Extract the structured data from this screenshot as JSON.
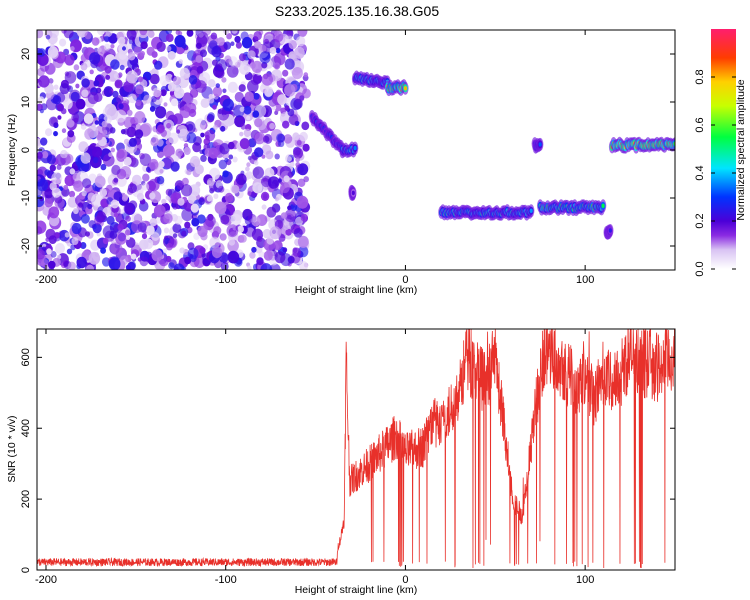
{
  "title": "S233.2025.135.16.38.G05",
  "chart_data": [
    {
      "type": "heatmap",
      "xlabel": "Height of straight line (km)",
      "ylabel": "Frequency (Hz)",
      "xlim": [
        -205,
        150
      ],
      "ylim": [
        -25,
        25
      ],
      "xticks": [
        -200,
        -100,
        0,
        100
      ],
      "yticks": [
        -20,
        -10,
        0,
        10,
        20
      ],
      "colorbar": {
        "label": "Normalized spectral amplitude",
        "ticks": [
          0.0,
          0.2,
          0.4,
          0.6,
          0.8
        ],
        "tick_labels": [
          "0.0",
          "0.2",
          "0.4",
          "0.6",
          "0.8"
        ],
        "range": [
          0,
          1
        ]
      },
      "features": [
        {
          "x": [
            -205,
            -55
          ],
          "freq": [
            -25,
            25
          ],
          "amplitude": 0.1,
          "kind": "noise"
        },
        {
          "x": [
            -52,
            -35
          ],
          "freq": [
            7,
            0
          ],
          "amplitude": 0.35
        },
        {
          "x": [
            -35,
            -28
          ],
          "freq": [
            0,
            0
          ],
          "amplitude": 0.45
        },
        {
          "x": [
            -30,
            -29
          ],
          "freq": [
            -9,
            -9
          ],
          "amplitude": 0.3
        },
        {
          "x": [
            -28,
            -10
          ],
          "freq": [
            15,
            14
          ],
          "amplitude": 0.45
        },
        {
          "x": [
            -10,
            0
          ],
          "freq": [
            13,
            13
          ],
          "amplitude": 0.8
        },
        {
          "x": [
            20,
            70
          ],
          "freq": [
            -13,
            -13
          ],
          "amplitude": 0.5
        },
        {
          "x": [
            72,
            75
          ],
          "freq": [
            1,
            1
          ],
          "amplitude": 0.4
        },
        {
          "x": [
            75,
            110
          ],
          "freq": [
            -12,
            -12
          ],
          "amplitude": 0.6
        },
        {
          "x": [
            112,
            114
          ],
          "freq": [
            -17,
            -17
          ],
          "amplitude": 0.35
        },
        {
          "x": [
            115,
            150
          ],
          "freq": [
            1,
            1
          ],
          "amplitude": 0.85
        }
      ]
    },
    {
      "type": "line",
      "xlabel": "Height of straight line (km)",
      "ylabel": "SNR (10 * v/v)",
      "xlim": [
        -205,
        150
      ],
      "ylim": [
        0,
        680
      ],
      "xticks": [
        -200,
        -100,
        0,
        100
      ],
      "yticks": [
        0,
        200,
        400,
        600
      ],
      "series": [
        {
          "color": "#e8302a",
          "profile": [
            [
              -205,
              25
            ],
            [
              -40,
              25
            ],
            [
              -36,
              90
            ],
            [
              -34,
              150
            ],
            [
              -33,
              600
            ],
            [
              -31,
              250
            ],
            [
              -20,
              300
            ],
            [
              -10,
              350
            ],
            [
              -5,
              380
            ],
            [
              0,
              330
            ],
            [
              10,
              350
            ],
            [
              15,
              420
            ],
            [
              20,
              400
            ],
            [
              25,
              450
            ],
            [
              30,
              520
            ],
            [
              35,
              600
            ],
            [
              40,
              560
            ],
            [
              45,
              520
            ],
            [
              50,
              600
            ],
            [
              55,
              400
            ],
            [
              60,
              200
            ],
            [
              65,
              150
            ],
            [
              70,
              350
            ],
            [
              75,
              560
            ],
            [
              80,
              630
            ],
            [
              85,
              600
            ],
            [
              90,
              560
            ],
            [
              95,
              520
            ],
            [
              100,
              560
            ],
            [
              105,
              480
            ],
            [
              110,
              560
            ],
            [
              115,
              520
            ],
            [
              120,
              560
            ],
            [
              125,
              610
            ],
            [
              130,
              580
            ],
            [
              135,
              590
            ],
            [
              140,
              570
            ],
            [
              145,
              590
            ],
            [
              150,
              600
            ]
          ]
        }
      ]
    }
  ]
}
